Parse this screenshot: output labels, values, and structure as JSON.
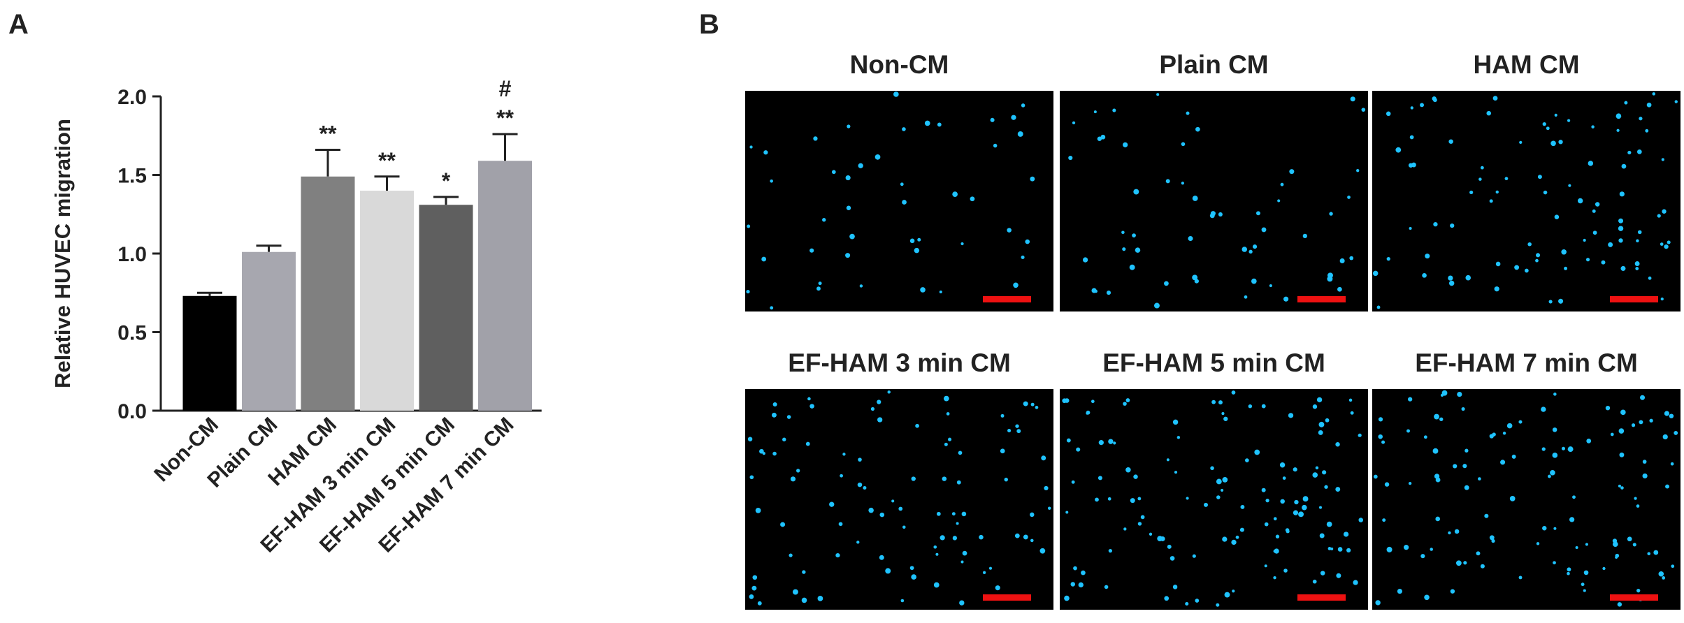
{
  "panel_a_label": "A",
  "panel_b_label": "B",
  "chart_data": {
    "type": "bar",
    "y_label": "Relative HUVEC migration",
    "categories": [
      "Non-CM",
      "Plain CM",
      "HAM CM",
      "EF-HAM 3 min CM",
      "EF-HAM 5 min CM",
      "EF-HAM 7 min CM"
    ],
    "values": [
      0.73,
      1.01,
      1.49,
      1.4,
      1.31,
      1.59
    ],
    "errors": [
      0.02,
      0.04,
      0.17,
      0.09,
      0.05,
      0.17
    ],
    "colors": [
      "#000000",
      "#a7a7af",
      "#808080",
      "#d9d9d9",
      "#5f5f5f",
      "#a1a1a9"
    ],
    "annotations": [
      [],
      [],
      [
        "**"
      ],
      [
        "**"
      ],
      [
        "*"
      ],
      [
        "**",
        "#"
      ]
    ],
    "ylim": [
      0,
      2
    ],
    "yticks": [
      {
        "value": 0,
        "label": "0.0"
      },
      0.5,
      {
        "value": 1,
        "label": "1.0"
      },
      1.5,
      {
        "value": 2,
        "label": "2.0"
      }
    ]
  },
  "images": [
    {
      "title": "Non-CM"
    },
    {
      "title": "Plain CM"
    },
    {
      "title": "HAM CM"
    },
    {
      "title": "EF-HAM 3 min CM"
    },
    {
      "title": "EF-HAM 5 min CM"
    },
    {
      "title": "EF-HAM 7 min CM"
    }
  ]
}
